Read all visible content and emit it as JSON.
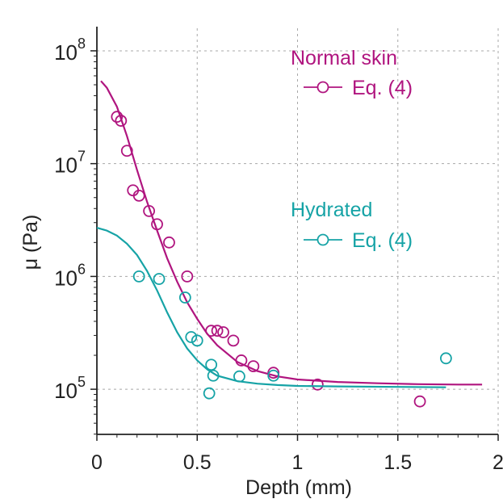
{
  "chart_data": {
    "type": "scatter",
    "title": "",
    "xlabel": "Depth (mm)",
    "ylabel": "μ (Pa)",
    "xlim": [
      0,
      2
    ],
    "ylim_log10": [
      4.6,
      8.2
    ],
    "y_scale": "log",
    "grid": true,
    "x_ticks": [
      {
        "value": 0,
        "label": "0"
      },
      {
        "value": 0.5,
        "label": "0.5"
      },
      {
        "value": 1,
        "label": "1"
      },
      {
        "value": 1.5,
        "label": "1.5"
      },
      {
        "value": 2,
        "label": "2"
      }
    ],
    "y_ticks": [
      {
        "exp": 5,
        "base": "10",
        "sup": "5"
      },
      {
        "exp": 6,
        "base": "10",
        "sup": "6"
      },
      {
        "exp": 7,
        "base": "10",
        "sup": "7"
      },
      {
        "exp": 8,
        "base": "10",
        "sup": "8"
      }
    ],
    "series": [
      {
        "name": "Normal skin",
        "legend_title": "Normal skin",
        "legend_entry": "Eq. (4)",
        "color": "#b0157f",
        "points": [
          [
            0.1,
            26000000.0
          ],
          [
            0.12,
            24000000.0
          ],
          [
            0.15,
            13000000.0
          ],
          [
            0.18,
            5800000.0
          ],
          [
            0.21,
            5200000.0
          ],
          [
            0.26,
            3800000.0
          ],
          [
            0.3,
            2900000.0
          ],
          [
            0.36,
            2000000.0
          ],
          [
            0.45,
            1000000.0
          ],
          [
            0.57,
            330000.0
          ],
          [
            0.6,
            330000.0
          ],
          [
            0.63,
            320000.0
          ],
          [
            0.68,
            270000.0
          ],
          [
            0.72,
            180000.0
          ],
          [
            0.78,
            160000.0
          ],
          [
            0.88,
            140000.0
          ],
          [
            1.1,
            110000.0
          ],
          [
            1.61,
            78000.0
          ]
        ],
        "fit": [
          [
            0.02,
            54000000.0
          ],
          [
            0.05,
            47000000.0
          ],
          [
            0.1,
            32000000.0
          ],
          [
            0.15,
            17500000.0
          ],
          [
            0.2,
            8800000.0
          ],
          [
            0.25,
            4600000.0
          ],
          [
            0.3,
            2550000.0
          ],
          [
            0.35,
            1450000.0
          ],
          [
            0.4,
            900000.0
          ],
          [
            0.45,
            590000.0
          ],
          [
            0.5,
            420000.0
          ],
          [
            0.55,
            310000.0
          ],
          [
            0.6,
            245000.0
          ],
          [
            0.7,
            175000.0
          ],
          [
            0.8,
            145000.0
          ],
          [
            0.9,
            130000.0
          ],
          [
            1.0,
            122000.0
          ],
          [
            1.2,
            116000.0
          ],
          [
            1.4,
            113000.0
          ],
          [
            1.6,
            111000.0
          ],
          [
            1.8,
            110000.0
          ],
          [
            1.92,
            110000.0
          ]
        ]
      },
      {
        "name": "Hydrated",
        "legend_title": "Hydrated",
        "legend_entry": "Eq. (4)",
        "color": "#16a3a6",
        "points": [
          [
            0.21,
            1000000.0
          ],
          [
            0.31,
            950000.0
          ],
          [
            0.44,
            650000.0
          ],
          [
            0.47,
            290000.0
          ],
          [
            0.5,
            270000.0
          ],
          [
            0.57,
            165000.0
          ],
          [
            0.58,
            132000.0
          ],
          [
            0.56,
            92000.0
          ],
          [
            0.71,
            130000.0
          ],
          [
            0.88,
            132000.0
          ],
          [
            1.74,
            188000.0
          ]
        ],
        "fit": [
          [
            0.0,
            2700000.0
          ],
          [
            0.05,
            2550000.0
          ],
          [
            0.1,
            2300000.0
          ],
          [
            0.15,
            1950000.0
          ],
          [
            0.2,
            1550000.0
          ],
          [
            0.25,
            1120000.0
          ],
          [
            0.3,
            750000.0
          ],
          [
            0.35,
            480000.0
          ],
          [
            0.4,
            320000.0
          ],
          [
            0.45,
            230000.0
          ],
          [
            0.5,
            180000.0
          ],
          [
            0.55,
            150000.0
          ],
          [
            0.6,
            132000.0
          ],
          [
            0.7,
            118000.0
          ],
          [
            0.8,
            112000.0
          ],
          [
            0.9,
            109000.0
          ],
          [
            1.0,
            107000.0
          ],
          [
            1.2,
            106000.0
          ],
          [
            1.5,
            105000.0
          ],
          [
            1.74,
            104000.0
          ]
        ]
      }
    ]
  }
}
